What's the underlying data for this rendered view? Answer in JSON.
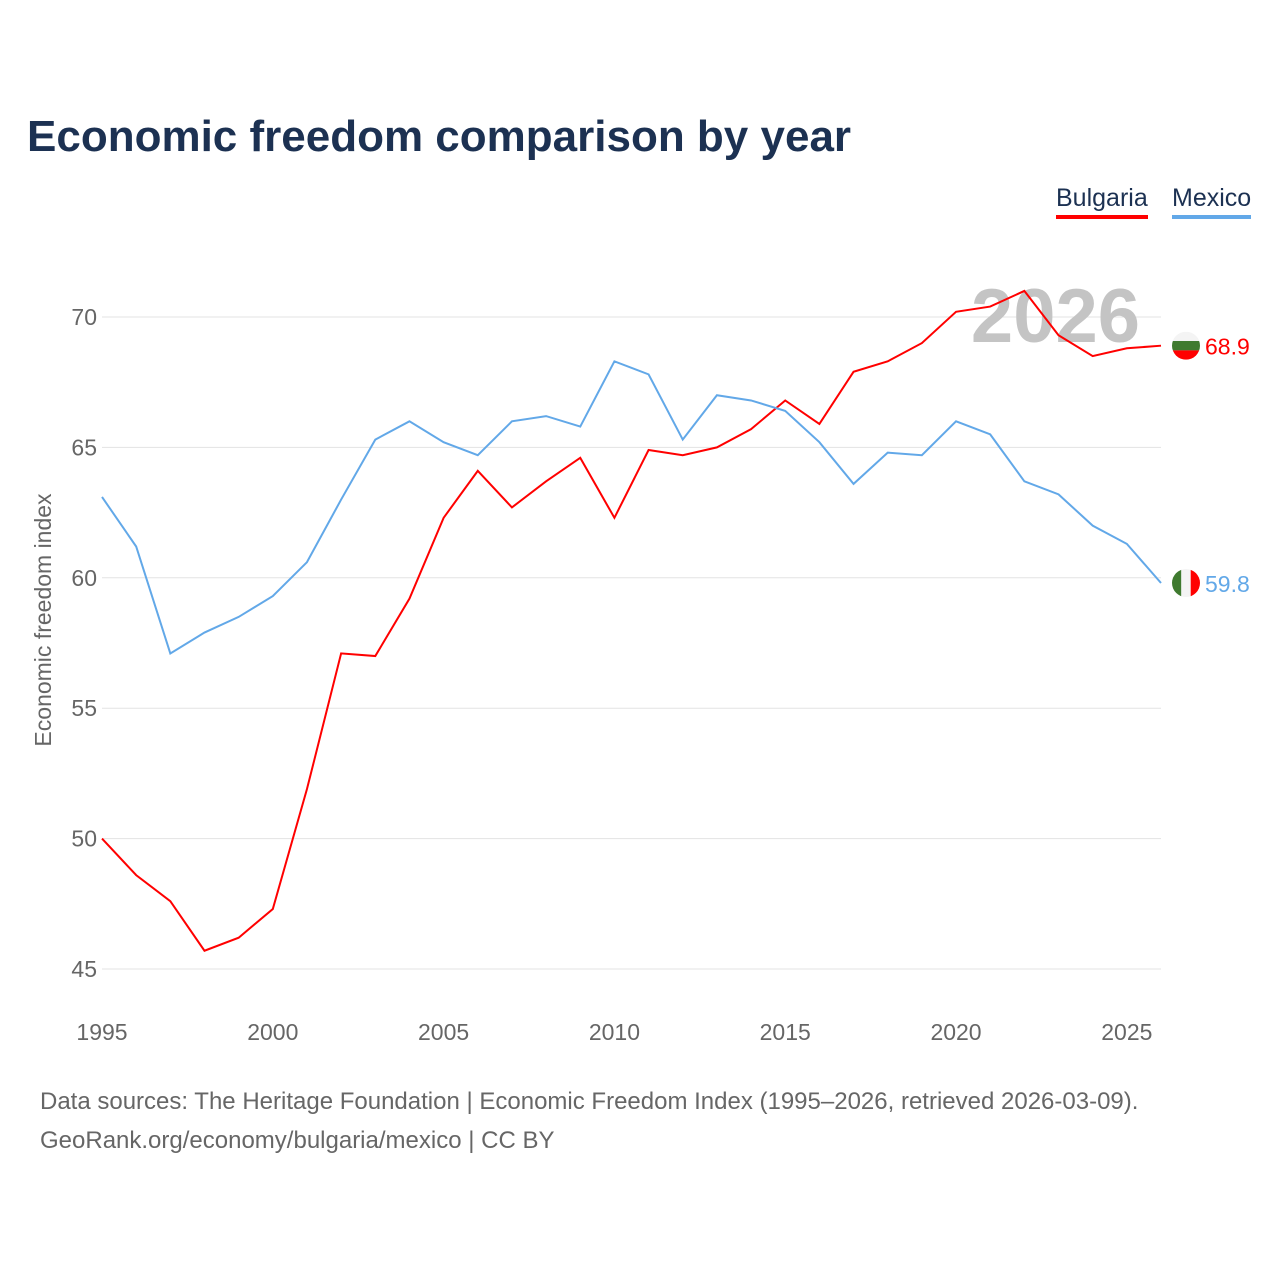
{
  "title": "Economic freedom comparison by year",
  "legend": [
    {
      "label": "Bulgaria",
      "color": "#ff0000"
    },
    {
      "label": "Mexico",
      "color": "#62a8e8"
    }
  ],
  "footer": {
    "line1": "Data sources: The Heritage Foundation | Economic Freedom Index (1995–2026, retrieved 2026-03-09).",
    "line2": "GeoRank.org/economy/bulgaria/mexico | CC BY"
  },
  "chart_data": {
    "type": "line",
    "title": "Economic freedom comparison by year",
    "xlabel": "",
    "ylabel": "Economic freedom index",
    "year_watermark": "2026",
    "x": [
      1995,
      1996,
      1997,
      1998,
      1999,
      2000,
      2001,
      2002,
      2003,
      2004,
      2005,
      2006,
      2007,
      2008,
      2009,
      2010,
      2011,
      2012,
      2013,
      2014,
      2015,
      2016,
      2017,
      2018,
      2019,
      2020,
      2021,
      2022,
      2023,
      2024,
      2025,
      2026
    ],
    "xlim": [
      1995,
      2026
    ],
    "ylim": [
      45,
      72
    ],
    "xticks": [
      "1995",
      "2000",
      "2005",
      "2010",
      "2015",
      "2020",
      "2025"
    ],
    "yticks": [
      "45",
      "50",
      "55",
      "60",
      "65",
      "70"
    ],
    "grid": true,
    "legend_position": "top-right",
    "series": [
      {
        "name": "Bulgaria",
        "color": "#ff0000",
        "end_label": "68.9",
        "values": [
          50.0,
          48.6,
          47.6,
          45.7,
          46.2,
          47.3,
          51.9,
          57.1,
          57.0,
          59.2,
          62.3,
          64.1,
          62.7,
          63.7,
          64.6,
          62.3,
          64.9,
          64.7,
          65.0,
          65.7,
          66.8,
          65.9,
          67.9,
          68.3,
          69.0,
          70.2,
          70.4,
          71.0,
          69.3,
          68.5,
          68.8,
          68.9
        ]
      },
      {
        "name": "Mexico",
        "color": "#62a8e8",
        "end_label": "59.8",
        "values": [
          63.1,
          61.2,
          57.1,
          57.9,
          58.5,
          59.3,
          60.6,
          63.0,
          65.3,
          66.0,
          65.2,
          64.7,
          66.0,
          66.2,
          65.8,
          68.3,
          67.8,
          65.3,
          67.0,
          66.8,
          66.4,
          65.2,
          63.6,
          64.8,
          64.7,
          66.0,
          65.5,
          63.7,
          63.2,
          62.0,
          61.3,
          59.8
        ]
      }
    ]
  }
}
